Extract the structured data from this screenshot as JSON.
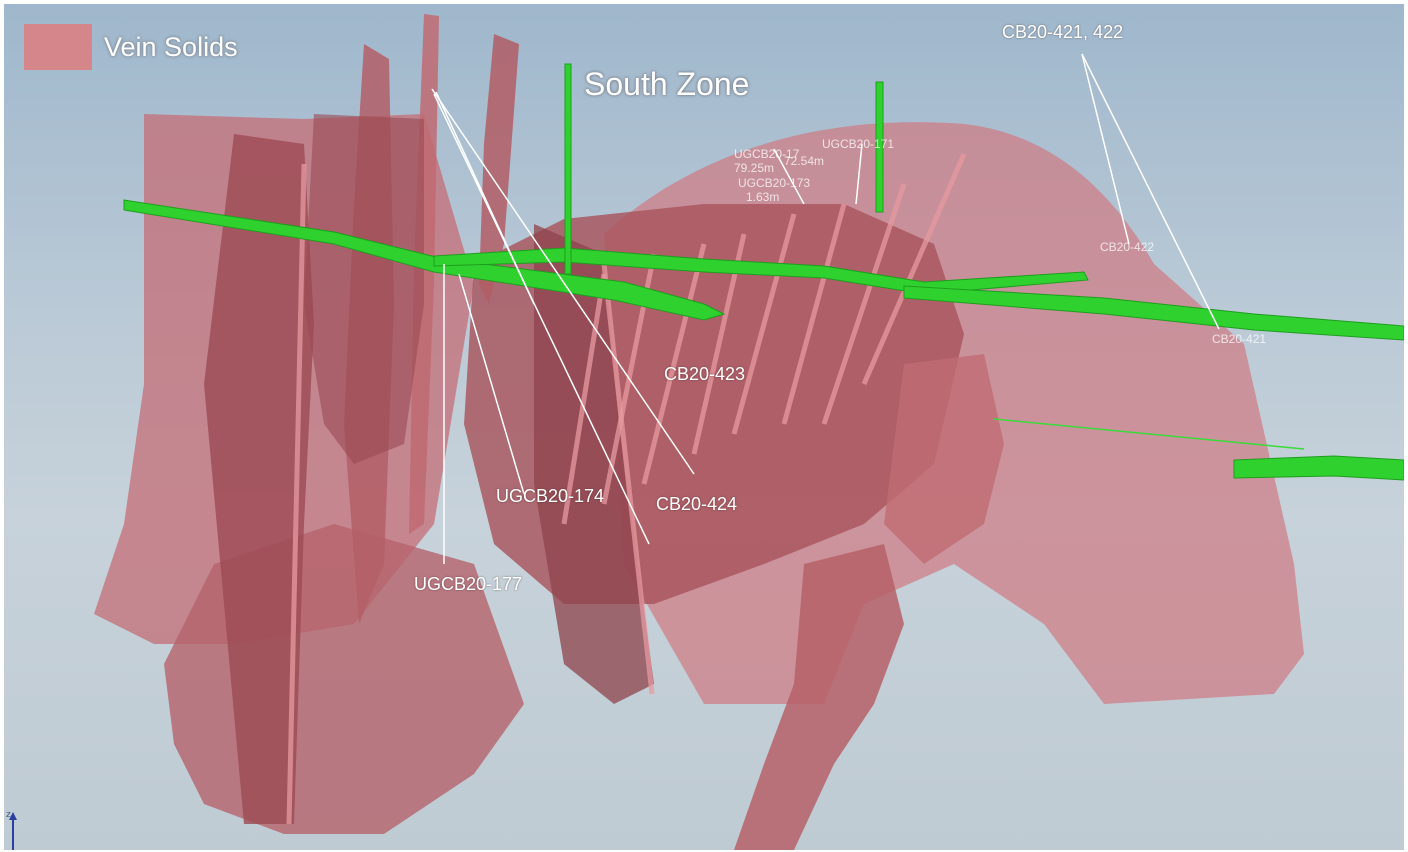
{
  "legend": {
    "label": "Vein Solids",
    "color": "#d5868b"
  },
  "zone_title": "South Zone",
  "drillhole_labels": {
    "cb20_421_422": "CB20-421, 422",
    "cb20_423": "CB20-423",
    "cb20_424": "CB20-424",
    "ugcb20_174": "UGCB20-174",
    "ugcb20_177": "UGCB20-177",
    "ugcb20_171": "UGCB20-171",
    "ugcb20_17x": "UGCB20-17",
    "ugcb20_173": "UGCB20-173",
    "len_7925": "79.25m",
    "len_7254": "72.54m",
    "len_163": "1.63m",
    "cb20_422_faint": "CB20-422",
    "cb20_421_faint": "CB20-421"
  },
  "axis": {
    "z_label": "z"
  },
  "colors": {
    "vein": "#d5868b",
    "tunnel": "#2fd12f",
    "drill_trace": "#ffffff"
  }
}
